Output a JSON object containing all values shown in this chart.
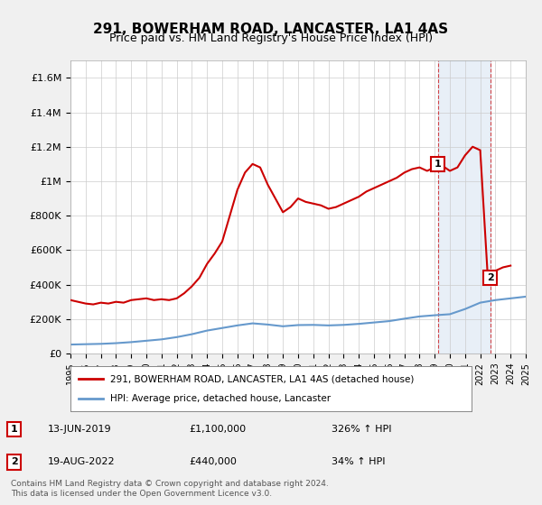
{
  "title": "291, BOWERHAM ROAD, LANCASTER, LA1 4AS",
  "subtitle": "Price paid vs. HM Land Registry's House Price Index (HPI)",
  "legend_line1": "291, BOWERHAM ROAD, LANCASTER, LA1 4AS (detached house)",
  "legend_line2": "HPI: Average price, detached house, Lancaster",
  "footnote": "Contains HM Land Registry data © Crown copyright and database right 2024.\nThis data is licensed under the Open Government Licence v3.0.",
  "annotation1": {
    "label": "1",
    "date": "13-JUN-2019",
    "price": "£1,100,000",
    "hpi": "326% ↑ HPI"
  },
  "annotation2": {
    "label": "2",
    "date": "19-AUG-2022",
    "price": "£440,000",
    "hpi": "34% ↑ HPI"
  },
  "red_color": "#cc0000",
  "blue_color": "#6699cc",
  "background_color": "#f0f0f0",
  "plot_bg_color": "#ffffff",
  "ylim": [
    0,
    1700000
  ],
  "yticks": [
    0,
    200000,
    400000,
    600000,
    800000,
    1000000,
    1200000,
    1400000,
    1600000
  ],
  "ytick_labels": [
    "£0",
    "£200K",
    "£400K",
    "£600K",
    "£800K",
    "£1M",
    "£1.2M",
    "£1.4M",
    "£1.6M"
  ],
  "hpi_years": [
    1995,
    1996,
    1997,
    1998,
    1999,
    2000,
    2001,
    2002,
    2003,
    2004,
    2005,
    2006,
    2007,
    2008,
    2009,
    2010,
    2011,
    2012,
    2013,
    2014,
    2015,
    2016,
    2017,
    2018,
    2019,
    2020,
    2021,
    2022,
    2023,
    2024,
    2025
  ],
  "hpi_values": [
    52000,
    54000,
    56000,
    60000,
    66000,
    74000,
    82000,
    95000,
    112000,
    133000,
    148000,
    163000,
    175000,
    168000,
    158000,
    165000,
    166000,
    163000,
    166000,
    172000,
    180000,
    188000,
    202000,
    215000,
    222000,
    228000,
    258000,
    295000,
    310000,
    320000,
    330000
  ],
  "price_paid_years": [
    1995.0,
    1995.5,
    1996.0,
    1996.5,
    1997.0,
    1997.5,
    1998.0,
    1998.5,
    1999.0,
    1999.5,
    2000.0,
    2000.5,
    2001.0,
    2001.5,
    2002.0,
    2002.5,
    2003.0,
    2003.5,
    2004.0,
    2004.5,
    2005.0,
    2005.5,
    2006.0,
    2006.5,
    2007.0,
    2007.5,
    2008.0,
    2008.5,
    2009.0,
    2009.5,
    2010.0,
    2010.5,
    2011.0,
    2011.5,
    2012.0,
    2012.5,
    2013.0,
    2013.5,
    2014.0,
    2014.5,
    2015.0,
    2015.5,
    2016.0,
    2016.5,
    2017.0,
    2017.5,
    2018.0,
    2018.5,
    2019.0,
    2019.2,
    2019.5,
    2020.0,
    2020.5,
    2021.0,
    2021.5,
    2022.0,
    2022.5,
    2022.65,
    2023.0,
    2023.5,
    2024.0
  ],
  "price_paid_values": [
    310000,
    300000,
    290000,
    285000,
    295000,
    290000,
    300000,
    295000,
    310000,
    315000,
    320000,
    310000,
    315000,
    310000,
    320000,
    350000,
    390000,
    440000,
    520000,
    580000,
    650000,
    800000,
    950000,
    1050000,
    1100000,
    1080000,
    980000,
    900000,
    820000,
    850000,
    900000,
    880000,
    870000,
    860000,
    840000,
    850000,
    870000,
    890000,
    910000,
    940000,
    960000,
    980000,
    1000000,
    1020000,
    1050000,
    1070000,
    1080000,
    1060000,
    1080000,
    1100000,
    1090000,
    1060000,
    1080000,
    1150000,
    1200000,
    1180000,
    440000,
    440000,
    480000,
    500000,
    510000
  ],
  "ann1_x": 2019.2,
  "ann1_y": 1100000,
  "ann2_x": 2022.65,
  "ann2_y": 440000,
  "xmin": 1995,
  "xmax": 2025
}
